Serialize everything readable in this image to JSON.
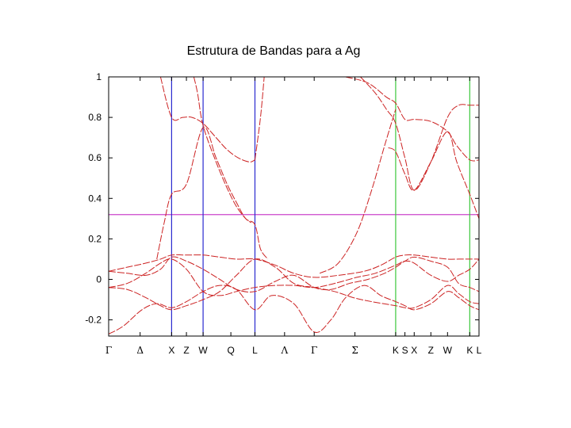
{
  "chart_data": {
    "type": "line",
    "title": "Estrutura de Bandas para a Ag",
    "xlabel": "",
    "ylabel": "",
    "xlim": [
      0,
      1
    ],
    "ylim": [
      -0.28,
      1
    ],
    "y_ticks": [
      -0.2,
      0,
      0.2,
      0.4,
      0.6,
      0.8,
      1
    ],
    "y_tick_labels": [
      "-0.2",
      "0",
      "0.2",
      "0.4",
      "0.6",
      "0.8",
      "1"
    ],
    "x_ticks": [
      {
        "label": "Γ",
        "x": 0.0
      },
      {
        "label": "Δ",
        "x": 0.085
      },
      {
        "label": "X",
        "x": 0.17
      },
      {
        "label": "Z",
        "x": 0.21
      },
      {
        "label": "W",
        "x": 0.255
      },
      {
        "label": "Q",
        "x": 0.33
      },
      {
        "label": "L",
        "x": 0.395
      },
      {
        "label": "Λ",
        "x": 0.475
      },
      {
        "label": "Γ",
        "x": 0.555
      },
      {
        "label": "Σ",
        "x": 0.665
      },
      {
        "label": "K",
        "x": 0.775
      },
      {
        "label": "S",
        "x": 0.8
      },
      {
        "label": "X",
        "x": 0.825
      },
      {
        "label": "Z",
        "x": 0.87
      },
      {
        "label": "W",
        "x": 0.915
      },
      {
        "label": "K",
        "x": 0.975
      },
      {
        "label": "L",
        "x": 1.0
      }
    ],
    "fermi_level": 0.32,
    "symmetry_lines": [
      {
        "x": 0.17,
        "color": "#2a2ad0"
      },
      {
        "x": 0.255,
        "color": "#2a2ad0"
      },
      {
        "x": 0.395,
        "color": "#2a2ad0"
      },
      {
        "x": 0.775,
        "color": "#3cc83c"
      },
      {
        "x": 0.975,
        "color": "#3cc83c"
      }
    ],
    "colors": {
      "bands": "#cc2222",
      "fermi": "#cc44cc",
      "axes": "#000000"
    },
    "series": [
      {
        "x": [
          0,
          0.04,
          0.09,
          0.13,
          0.17,
          0.21,
          0.255,
          0.3,
          0.345,
          0.395,
          0.44,
          0.5,
          0.555,
          0.6,
          0.64,
          0.69,
          0.735,
          0.775,
          0.8,
          0.825,
          0.87,
          0.915,
          0.945,
          0.975,
          1.0
        ],
        "values": [
          -0.27,
          -0.23,
          -0.15,
          -0.12,
          -0.14,
          -0.11,
          -0.06,
          -0.03,
          -0.05,
          -0.15,
          -0.08,
          -0.12,
          -0.26,
          -0.2,
          -0.09,
          -0.03,
          -0.08,
          -0.11,
          -0.13,
          -0.15,
          -0.12,
          -0.06,
          -0.09,
          -0.13,
          -0.15
        ]
      },
      {
        "x": [
          0,
          0.05,
          0.1,
          0.14,
          0.17,
          0.21,
          0.255,
          0.3,
          0.345,
          0.395,
          0.45,
          0.5,
          0.555,
          0.61,
          0.66,
          0.71,
          0.775,
          0.8,
          0.825,
          0.87,
          0.915,
          0.945,
          0.975,
          1.0
        ],
        "values": [
          -0.04,
          -0.05,
          -0.09,
          -0.13,
          -0.15,
          -0.13,
          -0.1,
          -0.06,
          0.02,
          0.1,
          0.06,
          -0.02,
          -0.04,
          -0.06,
          -0.09,
          -0.11,
          -0.13,
          -0.14,
          -0.14,
          -0.1,
          -0.03,
          -0.07,
          -0.11,
          -0.12
        ]
      },
      {
        "x": [
          0,
          0.05,
          0.1,
          0.14,
          0.17,
          0.21,
          0.255,
          0.3,
          0.345,
          0.395,
          0.45,
          0.5,
          0.555,
          0.61,
          0.67,
          0.72,
          0.775,
          0.8,
          0.825,
          0.87,
          0.915,
          0.945,
          0.975,
          1.0
        ],
        "values": [
          -0.04,
          -0.02,
          0.03,
          0.08,
          0.1,
          0.05,
          -0.06,
          -0.08,
          -0.06,
          -0.04,
          -0.03,
          -0.03,
          -0.04,
          -0.02,
          0.01,
          0.03,
          0.07,
          0.09,
          0.08,
          0.02,
          -0.01,
          0.02,
          0.05,
          0.1
        ]
      },
      {
        "x": [
          0,
          0.05,
          0.1,
          0.14,
          0.17,
          0.21,
          0.255,
          0.3,
          0.345,
          0.395,
          0.45,
          0.5,
          0.555,
          0.62,
          0.69,
          0.735,
          0.775,
          0.8,
          0.825,
          0.87,
          0.915,
          0.945,
          0.975,
          1.0
        ],
        "values": [
          0.04,
          0.06,
          0.08,
          0.1,
          0.12,
          0.12,
          0.12,
          0.11,
          0.1,
          0.1,
          0.07,
          0.03,
          0.01,
          0.02,
          0.04,
          0.07,
          0.11,
          0.12,
          0.12,
          0.11,
          0.1,
          0.1,
          0.1,
          0.1
        ]
      },
      {
        "x": [
          0,
          0.05,
          0.1,
          0.14,
          0.17,
          0.21,
          0.255,
          0.3,
          0.345,
          0.395,
          0.45,
          0.5,
          0.555,
          0.6,
          0.65,
          0.7,
          0.745,
          0.775,
          0.8,
          0.825,
          0.87,
          0.915,
          0.945,
          0.975,
          1.0
        ],
        "values": [
          0.04,
          0.03,
          0.02,
          0.05,
          0.11,
          0.09,
          0.05,
          0.0,
          -0.05,
          -0.06,
          -0.01,
          0.02,
          -0.04,
          -0.05,
          -0.02,
          0.0,
          0.03,
          0.06,
          0.09,
          0.11,
          0.09,
          0.06,
          -0.02,
          -0.04,
          -0.06
        ]
      },
      {
        "x": [
          0.13,
          0.15,
          0.17,
          0.21,
          0.255,
          0.29,
          0.32,
          0.345,
          0.37,
          0.395,
          0.41,
          0.43
        ],
        "values": [
          0.1,
          0.28,
          0.42,
          0.47,
          0.75,
          0.6,
          0.47,
          0.38,
          0.3,
          0.27,
          0.15,
          0.1
        ]
      },
      {
        "x": [
          0.14,
          0.17,
          0.2,
          0.225,
          0.255,
          0.29,
          0.32,
          0.35,
          0.38,
          0.395
        ],
        "values": [
          1.0,
          0.8,
          0.8,
          0.8,
          0.77,
          0.7,
          0.64,
          0.6,
          0.58,
          0.59
        ]
      },
      {
        "x": [
          0.23,
          0.24,
          0.255,
          0.29,
          0.32,
          0.345,
          0.37,
          0.385
        ],
        "values": [
          1.0,
          0.92,
          0.76,
          0.58,
          0.45,
          0.36,
          0.3,
          0.28
        ]
      },
      {
        "x": [
          0.395,
          0.41,
          0.42
        ],
        "values": [
          0.59,
          0.8,
          1.0
        ]
      },
      {
        "x": [
          0.57,
          0.62,
          0.67,
          0.71,
          0.745,
          0.775
        ],
        "values": [
          0.03,
          0.08,
          0.23,
          0.44,
          0.66,
          0.84
        ]
      },
      {
        "x": [
          0.64,
          0.7,
          0.75,
          0.775,
          0.8,
          0.825,
          0.87,
          0.915,
          0.94,
          0.975,
          1.0
        ],
        "values": [
          1.0,
          0.97,
          0.9,
          0.87,
          0.79,
          0.79,
          0.78,
          0.73,
          0.66,
          0.59,
          0.59
        ]
      },
      {
        "x": [
          0.68,
          0.72,
          0.75,
          0.775,
          0.8,
          0.825,
          0.87,
          0.915,
          0.945,
          0.975,
          1.0
        ],
        "values": [
          1.0,
          0.92,
          0.84,
          0.77,
          0.6,
          0.44,
          0.58,
          0.8,
          0.86,
          0.86,
          0.86
        ]
      },
      {
        "x": [
          0.755,
          0.775,
          0.8,
          0.825,
          0.87,
          0.915,
          0.94,
          0.975,
          1.0
        ],
        "values": [
          0.65,
          0.63,
          0.52,
          0.44,
          0.58,
          0.73,
          0.58,
          0.42,
          0.3
        ]
      }
    ]
  }
}
